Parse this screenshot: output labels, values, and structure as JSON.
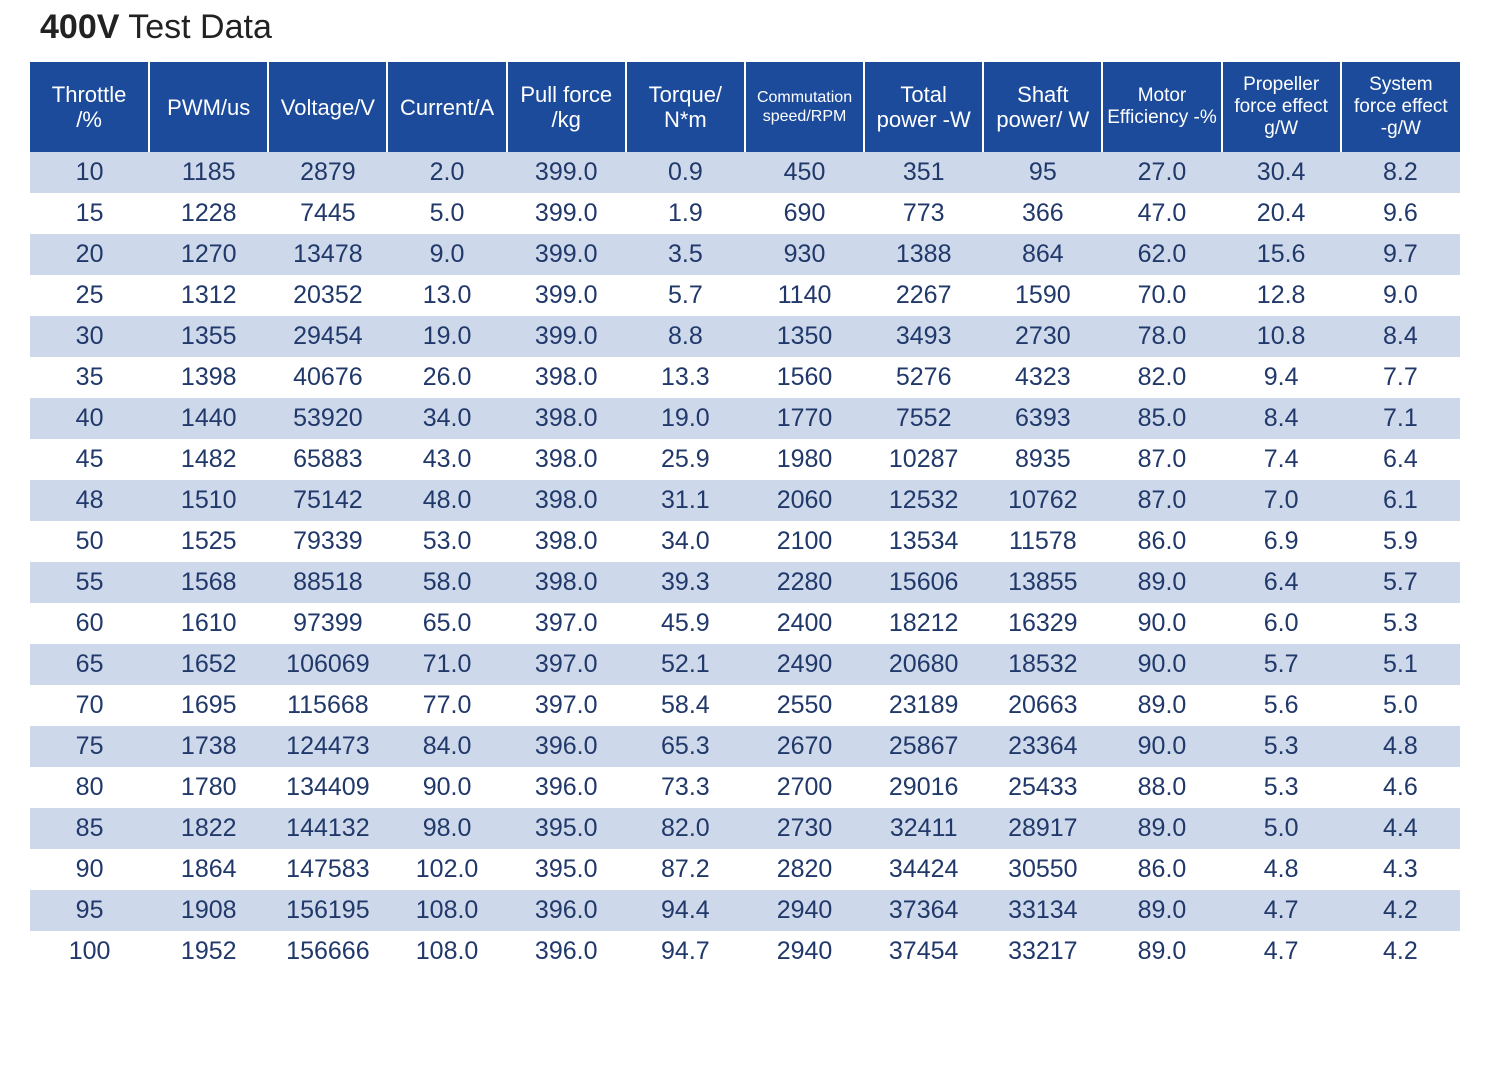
{
  "title": {
    "bold": "400V",
    "rest": " Test Data"
  },
  "headers": [
    {
      "line1": "Throttle",
      "line2": "/%",
      "size": "lg"
    },
    {
      "line1": "PWM/us",
      "line2": "",
      "size": "lg"
    },
    {
      "line1": "Voltage/V",
      "line2": "",
      "size": "lg"
    },
    {
      "line1": "Current/A",
      "line2": "",
      "size": "lg"
    },
    {
      "line1": "Pull force",
      "line2": "/kg",
      "size": "lg"
    },
    {
      "line1": "Torque/",
      "line2": "N*m",
      "size": "lg"
    },
    {
      "line1": "Commutation",
      "line2": "speed/RPM",
      "size": "sm"
    },
    {
      "line1": "Total",
      "line2": "power -W",
      "size": "lg"
    },
    {
      "line1": "Shaft",
      "line2": "power/ W",
      "size": "lg"
    },
    {
      "line1": "Motor",
      "line2": "Efficiency -%",
      "size": "md"
    },
    {
      "line1": "Propeller",
      "line2": "force effect",
      "line3": "g/W",
      "size": "md"
    },
    {
      "line1": "System",
      "line2": "force effect",
      "line3": "-g/W",
      "size": "md"
    }
  ],
  "rows": [
    [
      "10",
      "1185",
      "2879",
      "2.0",
      "399.0",
      "0.9",
      "450",
      "351",
      "95",
      "27.0",
      "30.4",
      "8.2"
    ],
    [
      "15",
      "1228",
      "7445",
      "5.0",
      "399.0",
      "1.9",
      "690",
      "773",
      "366",
      "47.0",
      "20.4",
      "9.6"
    ],
    [
      "20",
      "1270",
      "13478",
      "9.0",
      "399.0",
      "3.5",
      "930",
      "1388",
      "864",
      "62.0",
      "15.6",
      "9.7"
    ],
    [
      "25",
      "1312",
      "20352",
      "13.0",
      "399.0",
      "5.7",
      "1140",
      "2267",
      "1590",
      "70.0",
      "12.8",
      "9.0"
    ],
    [
      "30",
      "1355",
      "29454",
      "19.0",
      "399.0",
      "8.8",
      "1350",
      "3493",
      "2730",
      "78.0",
      "10.8",
      "8.4"
    ],
    [
      "35",
      "1398",
      "40676",
      "26.0",
      "398.0",
      "13.3",
      "1560",
      "5276",
      "4323",
      "82.0",
      "9.4",
      "7.7"
    ],
    [
      "40",
      "1440",
      "53920",
      "34.0",
      "398.0",
      "19.0",
      "1770",
      "7552",
      "6393",
      "85.0",
      "8.4",
      "7.1"
    ],
    [
      "45",
      "1482",
      "65883",
      "43.0",
      "398.0",
      "25.9",
      "1980",
      "10287",
      "8935",
      "87.0",
      "7.4",
      "6.4"
    ],
    [
      "48",
      "1510",
      "75142",
      "48.0",
      "398.0",
      "31.1",
      "2060",
      "12532",
      "10762",
      "87.0",
      "7.0",
      "6.1"
    ],
    [
      "50",
      "1525",
      "79339",
      "53.0",
      "398.0",
      "34.0",
      "2100",
      "13534",
      "11578",
      "86.0",
      "6.9",
      "5.9"
    ],
    [
      "55",
      "1568",
      "88518",
      "58.0",
      "398.0",
      "39.3",
      "2280",
      "15606",
      "13855",
      "89.0",
      "6.4",
      "5.7"
    ],
    [
      "60",
      "1610",
      "97399",
      "65.0",
      "397.0",
      "45.9",
      "2400",
      "18212",
      "16329",
      "90.0",
      "6.0",
      "5.3"
    ],
    [
      "65",
      "1652",
      "106069",
      "71.0",
      "397.0",
      "52.1",
      "2490",
      "20680",
      "18532",
      "90.0",
      "5.7",
      "5.1"
    ],
    [
      "70",
      "1695",
      "115668",
      "77.0",
      "397.0",
      "58.4",
      "2550",
      "23189",
      "20663",
      "89.0",
      "5.6",
      "5.0"
    ],
    [
      "75",
      "1738",
      "124473",
      "84.0",
      "396.0",
      "65.3",
      "2670",
      "25867",
      "23364",
      "90.0",
      "5.3",
      "4.8"
    ],
    [
      "80",
      "1780",
      "134409",
      "90.0",
      "396.0",
      "73.3",
      "2700",
      "29016",
      "25433",
      "88.0",
      "5.3",
      "4.6"
    ],
    [
      "85",
      "1822",
      "144132",
      "98.0",
      "395.0",
      "82.0",
      "2730",
      "32411",
      "28917",
      "89.0",
      "5.0",
      "4.4"
    ],
    [
      "90",
      "1864",
      "147583",
      "102.0",
      "395.0",
      "87.2",
      "2820",
      "34424",
      "30550",
      "86.0",
      "4.8",
      "4.3"
    ],
    [
      "95",
      "1908",
      "156195",
      "108.0",
      "396.0",
      "94.4",
      "2940",
      "37364",
      "33134",
      "89.0",
      "4.7",
      "4.2"
    ],
    [
      "100",
      "1952",
      "156666",
      "108.0",
      "396.0",
      "94.7",
      "2940",
      "37454",
      "33217",
      "89.0",
      "4.7",
      "4.2"
    ]
  ],
  "colors": {
    "header_bg": "#1c4b9c",
    "stripe": "#cdd8ea",
    "text": "#20386a"
  }
}
